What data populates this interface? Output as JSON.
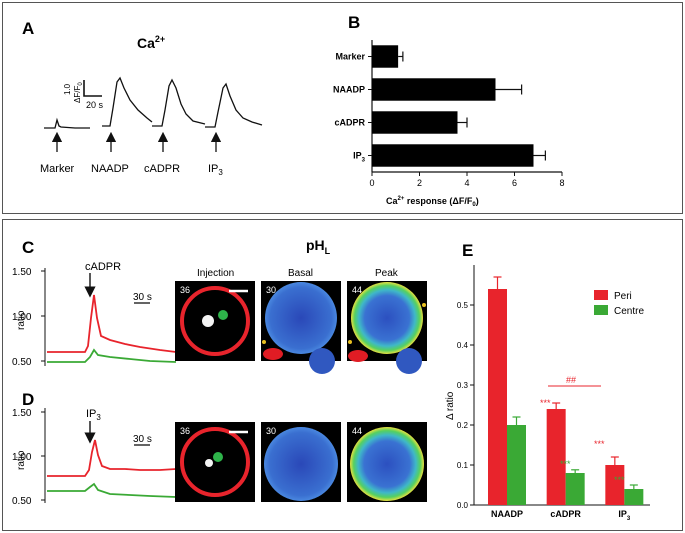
{
  "panel_labels": {
    "a": "A",
    "b": "B",
    "c": "C",
    "d": "D",
    "e": "E"
  },
  "panel_a": {
    "title_main": "Ca",
    "title_sup": "2+",
    "scale_y_value": "1.0",
    "scale_y_unit": "ΔF/F",
    "scale_y_sub": "0",
    "scale_x": "20 s",
    "traces": [
      {
        "label": "Marker",
        "sub": ""
      },
      {
        "label": "NAADP",
        "sub": ""
      },
      {
        "label": "cADPR",
        "sub": ""
      },
      {
        "label": "IP",
        "sub": "3"
      }
    ]
  },
  "panel_b": {
    "xlabel_main": "Ca",
    "xlabel_sup": "2+",
    "xlabel_rest": " response (ΔF/F",
    "xlabel_sub": "0",
    "xlabel_end": ")"
  },
  "panel_c": {
    "title_main": "pH",
    "title_sub": "L",
    "stimulus": "cADPR",
    "ylabel": "ratio",
    "scale_x": "30 s",
    "yticks": [
      "1.50",
      "1.00",
      "0.50"
    ],
    "image_titles": [
      "Injection",
      "Basal",
      "Peak"
    ],
    "frame_numbers": [
      "36",
      "30",
      "44"
    ]
  },
  "panel_d": {
    "stimulus_main": "IP",
    "stimulus_sub": "3",
    "ylabel": "ratio",
    "scale_x": "30 s",
    "yticks": [
      "1.50",
      "1.00",
      "0.50"
    ],
    "frame_numbers": [
      "36",
      "30",
      "44"
    ]
  },
  "panel_e": {
    "significance_hash": "##",
    "star_labels": [
      "***",
      "***",
      "***",
      "***"
    ]
  },
  "colors": {
    "peri": "#e8242c",
    "centre": "#3aa935",
    "bar_b": "#000000"
  },
  "chart_data": [
    {
      "type": "bar",
      "orientation": "horizontal",
      "panel": "B",
      "categories": [
        "Marker",
        "NAADP",
        "cADPR",
        "IP3"
      ],
      "values": [
        1.1,
        5.2,
        3.6,
        6.8
      ],
      "errors": [
        0.2,
        1.1,
        0.4,
        0.5
      ],
      "xlabel": "Ca2+ response (ΔF/F0)",
      "xlim": [
        0,
        8
      ],
      "xticks": [
        0,
        2,
        4,
        6,
        8
      ]
    },
    {
      "type": "bar",
      "panel": "E",
      "categories": [
        "NAADP",
        "cADPR",
        "IP3"
      ],
      "series": [
        {
          "name": "Peri",
          "values": [
            0.54,
            0.24,
            0.1
          ],
          "errors": [
            0.03,
            0.015,
            0.02
          ]
        },
        {
          "name": "Centre",
          "values": [
            0.2,
            0.08,
            0.04
          ],
          "errors": [
            0.02,
            0.008,
            0.01
          ]
        }
      ],
      "ylabel": "Δ ratio",
      "ylim": [
        0,
        0.6
      ],
      "yticks": [
        "0.0",
        "0.1",
        "0.2",
        "0.3",
        "0.4",
        "0.5"
      ]
    }
  ]
}
